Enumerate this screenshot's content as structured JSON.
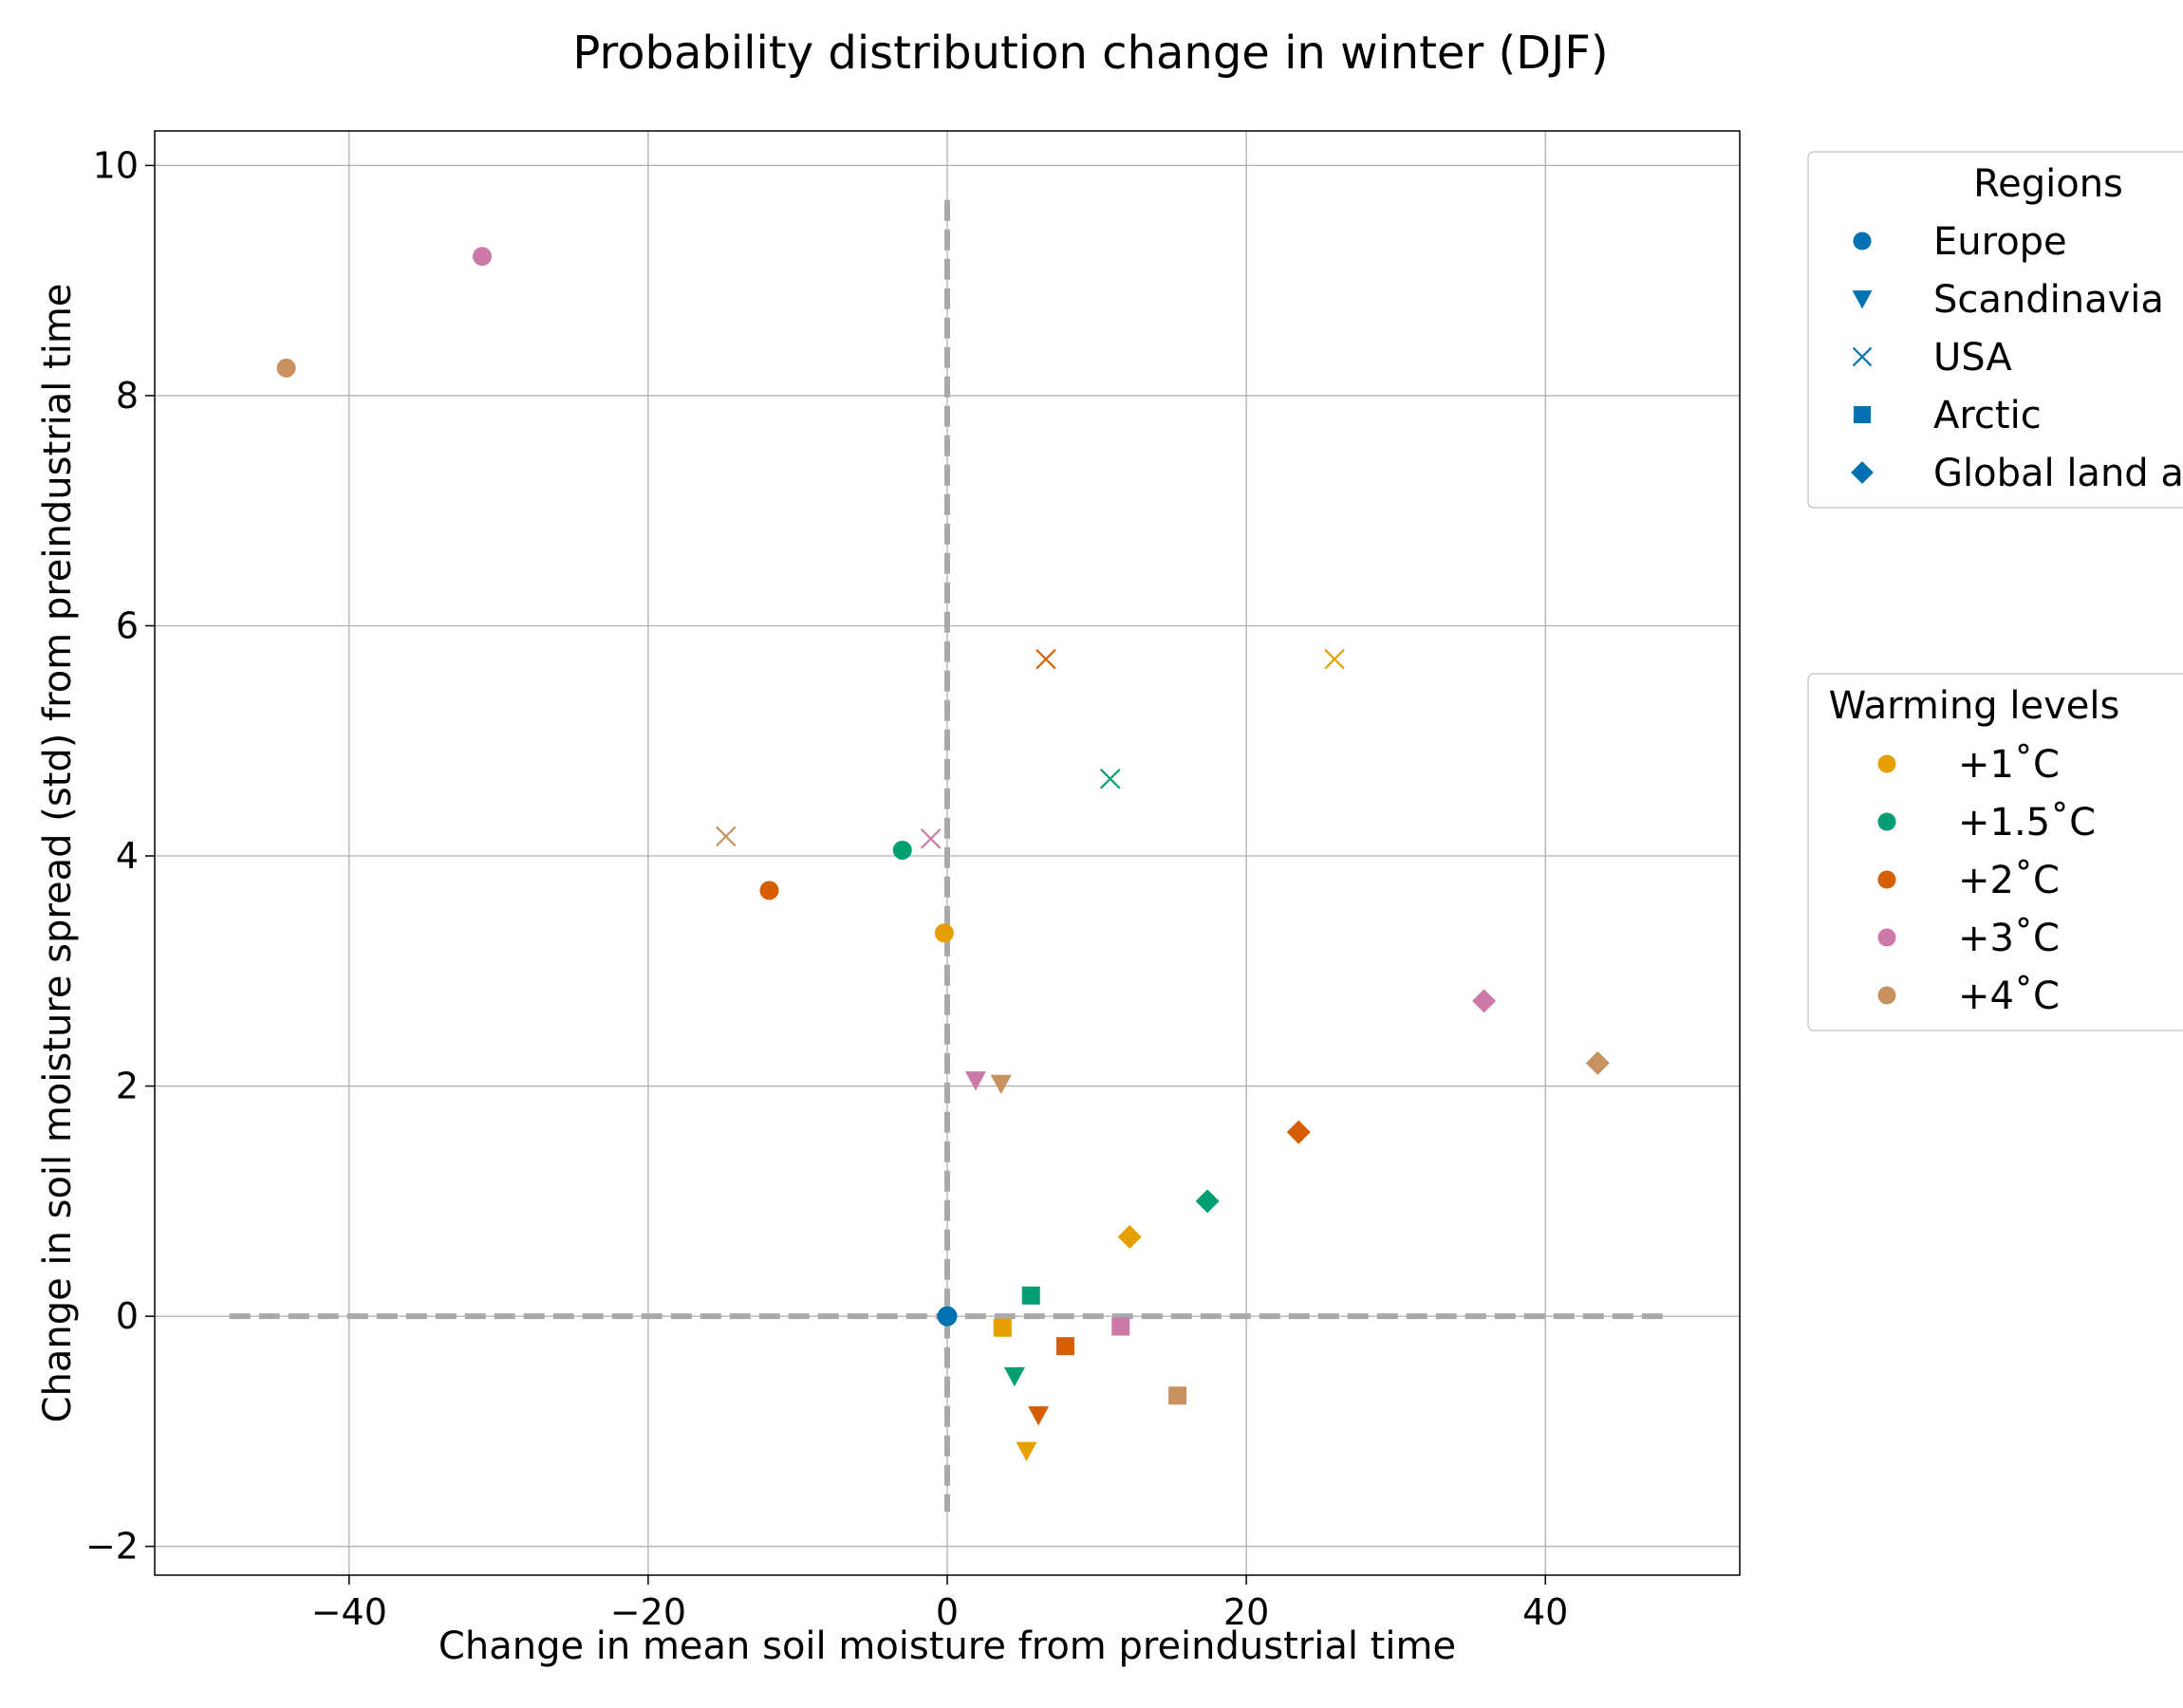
{
  "chart_data": {
    "type": "scatter",
    "title": "Probability distribution change in winter (DJF)",
    "xlabel": "Change in mean soil moisture from preindustrial time",
    "ylabel": "Change in soil moisture spread (std) from preindustrial time",
    "xlim": [
      -53,
      53
    ],
    "ylim": [
      -2.25,
      10.3
    ],
    "xticks": [
      -40,
      -20,
      0,
      20,
      40
    ],
    "yticks": [
      -2,
      0,
      2,
      4,
      6,
      8,
      10
    ],
    "xtick_labels": [
      "−40",
      "−20",
      "0",
      "20",
      "40"
    ],
    "ytick_labels": [
      "−2",
      "0",
      "2",
      "4",
      "6",
      "8",
      "10"
    ],
    "grid": true,
    "reference_lines": [
      {
        "orientation": "horizontal",
        "y": 0,
        "x_from": -48,
        "x_to": 48,
        "style": "dashed",
        "color": "#a9a9a9"
      },
      {
        "orientation": "vertical",
        "x": 0,
        "y_from": -1.7,
        "y_to": 9.7,
        "style": "dashed",
        "color": "#a9a9a9"
      }
    ],
    "legend_regions": {
      "title": "Regions",
      "placement": "upper-right-outside",
      "color": "#0072b2",
      "entries": [
        {
          "label": "Europe",
          "marker": "circle"
        },
        {
          "label": "Scandinavia",
          "marker": "triangle-down"
        },
        {
          "label": "USA",
          "marker": "x"
        },
        {
          "label": "Arctic",
          "marker": "square"
        },
        {
          "label": "Global land areas",
          "marker": "diamond"
        }
      ]
    },
    "legend_levels": {
      "title": "Warming levels",
      "placement": "center-right-outside",
      "marker": "circle",
      "entries": [
        {
          "label": "+1˚C",
          "color": "#e69f00"
        },
        {
          "label": "+1.5˚C",
          "color": "#009e73"
        },
        {
          "label": "+2˚C",
          "color": "#d55e00"
        },
        {
          "label": "+3˚C",
          "color": "#cc79a7"
        },
        {
          "label": "+4˚C",
          "color": "#c8915f"
        }
      ]
    },
    "origin_point": {
      "x": 0,
      "y": 0,
      "color": "#0072b2"
    },
    "points": [
      {
        "region": "Europe",
        "marker": "circle",
        "level": "+1",
        "color": "#e69f00",
        "x": -0.2,
        "y": 3.33
      },
      {
        "region": "Europe",
        "marker": "circle",
        "level": "+1.5",
        "color": "#009e73",
        "x": -3.0,
        "y": 4.05
      },
      {
        "region": "Europe",
        "marker": "circle",
        "level": "+2",
        "color": "#d55e00",
        "x": -11.9,
        "y": 3.7
      },
      {
        "region": "Europe",
        "marker": "circle",
        "level": "+3",
        "color": "#cc79a7",
        "x": -31.1,
        "y": 9.21
      },
      {
        "region": "Europe",
        "marker": "circle",
        "level": "+4",
        "color": "#c8915f",
        "x": -44.2,
        "y": 8.24
      },
      {
        "region": "Scandinavia",
        "marker": "triangle-down",
        "level": "+1",
        "color": "#e69f00",
        "x": 5.3,
        "y": -1.17
      },
      {
        "region": "Scandinavia",
        "marker": "triangle-down",
        "level": "+1.5",
        "color": "#009e73",
        "x": 4.5,
        "y": -0.52
      },
      {
        "region": "Scandinavia",
        "marker": "triangle-down",
        "level": "+2",
        "color": "#d55e00",
        "x": 6.1,
        "y": -0.86
      },
      {
        "region": "Scandinavia",
        "marker": "triangle-down",
        "level": "+3",
        "color": "#cc79a7",
        "x": 1.9,
        "y": 2.05
      },
      {
        "region": "Scandinavia",
        "marker": "triangle-down",
        "level": "+4",
        "color": "#c8915f",
        "x": 3.6,
        "y": 2.02
      },
      {
        "region": "USA",
        "marker": "x",
        "level": "+1",
        "color": "#e69f00",
        "x": 25.9,
        "y": 5.71
      },
      {
        "region": "USA",
        "marker": "x",
        "level": "+1.5",
        "color": "#009e73",
        "x": 10.9,
        "y": 4.67
      },
      {
        "region": "USA",
        "marker": "x",
        "level": "+2",
        "color": "#d55e00",
        "x": 6.6,
        "y": 5.71
      },
      {
        "region": "USA",
        "marker": "x",
        "level": "+3",
        "color": "#cc79a7",
        "x": -1.1,
        "y": 4.15
      },
      {
        "region": "USA",
        "marker": "x",
        "level": "+4",
        "color": "#c8915f",
        "x": -14.8,
        "y": 4.17
      },
      {
        "region": "Arctic",
        "marker": "square",
        "level": "+1",
        "color": "#e69f00",
        "x": 3.7,
        "y": -0.1
      },
      {
        "region": "Arctic",
        "marker": "square",
        "level": "+1.5",
        "color": "#009e73",
        "x": 5.6,
        "y": 0.18
      },
      {
        "region": "Arctic",
        "marker": "square",
        "level": "+2",
        "color": "#d55e00",
        "x": 7.9,
        "y": -0.26
      },
      {
        "region": "Arctic",
        "marker": "square",
        "level": "+3",
        "color": "#cc79a7",
        "x": 11.6,
        "y": -0.09
      },
      {
        "region": "Arctic",
        "marker": "square",
        "level": "+4",
        "color": "#c8915f",
        "x": 15.4,
        "y": -0.69
      },
      {
        "region": "Global land areas",
        "marker": "diamond",
        "level": "+1",
        "color": "#e69f00",
        "x": 12.2,
        "y": 0.69
      },
      {
        "region": "Global land areas",
        "marker": "diamond",
        "level": "+1.5",
        "color": "#009e73",
        "x": 17.4,
        "y": 1.0
      },
      {
        "region": "Global land areas",
        "marker": "diamond",
        "level": "+2",
        "color": "#d55e00",
        "x": 23.5,
        "y": 1.6
      },
      {
        "region": "Global land areas",
        "marker": "diamond",
        "level": "+3",
        "color": "#cc79a7",
        "x": 35.9,
        "y": 2.74
      },
      {
        "region": "Global land areas",
        "marker": "diamond",
        "level": "+4",
        "color": "#c8915f",
        "x": 43.5,
        "y": 2.2
      }
    ]
  }
}
